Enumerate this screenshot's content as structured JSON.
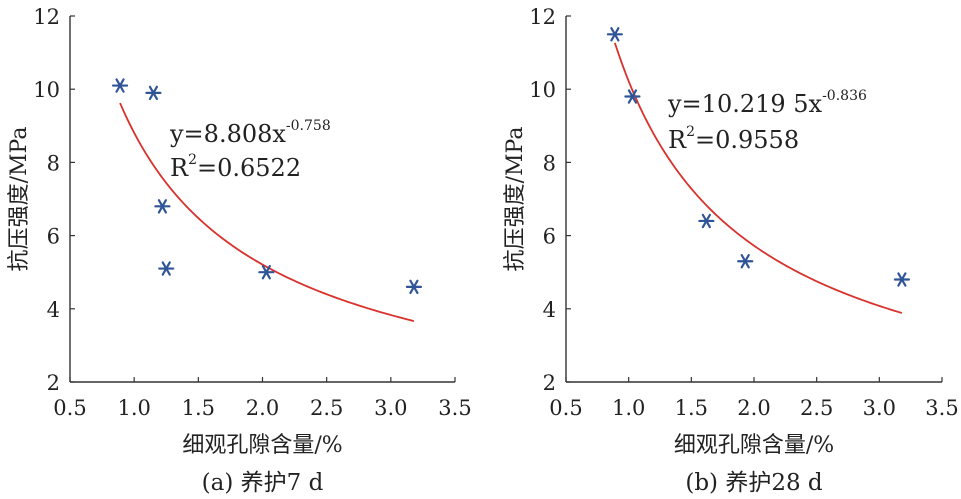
{
  "chart_data": [
    {
      "type": "scatter",
      "caption": "(a) 养护7 d",
      "xlabel": "细观孔隙含量/%",
      "ylabel": "抗压强度/MPa",
      "xlim": [
        0.5,
        3.5
      ],
      "ylim": [
        2,
        12
      ],
      "xticks": [
        "0.5",
        "1.0",
        "1.5",
        "2.0",
        "2.5",
        "3.0",
        "3.5"
      ],
      "yticks": [
        "2",
        "4",
        "6",
        "8",
        "10",
        "12"
      ],
      "points": [
        {
          "x": 0.89,
          "y": 10.1
        },
        {
          "x": 1.15,
          "y": 9.9
        },
        {
          "x": 1.22,
          "y": 6.8
        },
        {
          "x": 1.25,
          "y": 5.1
        },
        {
          "x": 2.03,
          "y": 5.0
        },
        {
          "x": 3.18,
          "y": 4.6
        }
      ],
      "fit": {
        "a": 8.808,
        "b": -0.758,
        "x_range": [
          0.89,
          3.18
        ],
        "equation": {
          "prefix": "y=8.808x",
          "exponent": "-0.758"
        },
        "r2": {
          "prefix": "R",
          "sup": "2",
          "suffix": "=0.6522"
        }
      },
      "marker_color": "#2f5597",
      "fit_color": "#d9312b",
      "grid": false
    },
    {
      "type": "scatter",
      "caption": "(b) 养护28 d",
      "xlabel": "细观孔隙含量/%",
      "ylabel": "抗压强度/MPa",
      "xlim": [
        0.5,
        3.5
      ],
      "ylim": [
        2,
        12
      ],
      "xticks": [
        "0.5",
        "1.0",
        "1.5",
        "2.0",
        "2.5",
        "3.0",
        "3.5"
      ],
      "yticks": [
        "2",
        "4",
        "6",
        "8",
        "10",
        "12"
      ],
      "points": [
        {
          "x": 0.89,
          "y": 11.5
        },
        {
          "x": 1.03,
          "y": 9.8
        },
        {
          "x": 1.62,
          "y": 6.4
        },
        {
          "x": 1.93,
          "y": 5.3
        },
        {
          "x": 3.18,
          "y": 4.8
        }
      ],
      "fit": {
        "a": 10.2195,
        "b": -0.836,
        "x_range": [
          0.89,
          3.18
        ],
        "equation": {
          "prefix": "y=10.219 5x",
          "exponent": "-0.836"
        },
        "r2": {
          "prefix": "R",
          "sup": "2",
          "suffix": "=0.9558"
        }
      },
      "marker_color": "#2f5597",
      "fit_color": "#d9312b",
      "grid": false
    }
  ]
}
